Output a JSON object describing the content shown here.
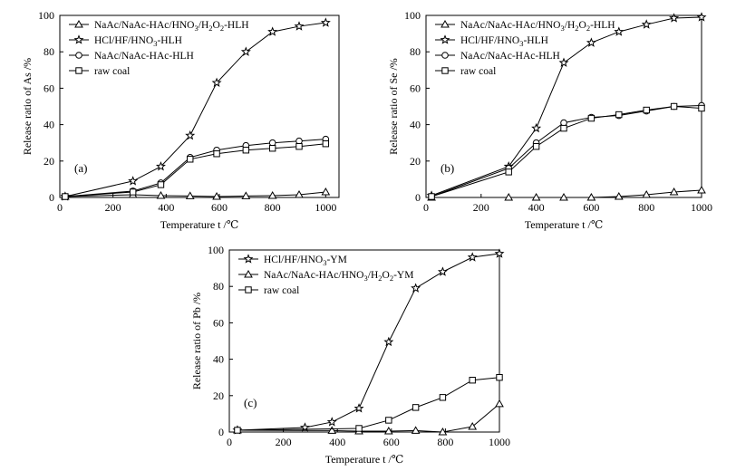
{
  "chart_data": [
    {
      "type": "line",
      "panel_label": "(a)",
      "xlabel": "Temperature    t /℃",
      "ylabel": "Release ratio of As /%",
      "xlim": [
        0,
        1050
      ],
      "ylim": [
        0,
        100
      ],
      "xticks": [
        0,
        200,
        400,
        600,
        800,
        1000
      ],
      "yticks": [
        0,
        20,
        40,
        60,
        80,
        100
      ],
      "legend_position": "top-left",
      "series": [
        {
          "name": "NaAc/NaAc-HAc/HNO3/H2O2-HLH",
          "legend_main": "NaAc/NaAc-HAc/HNO",
          "legend_sub1": "3",
          "legend_mid": "/H",
          "legend_sub2": "2",
          "legend_mid2": "O",
          "legend_sub3": "2",
          "legend_end": "-HLH",
          "marker": "triangle",
          "x": [
            20,
            275,
            380,
            490,
            590,
            700,
            800,
            900,
            1000
          ],
          "y": [
            0.5,
            1.5,
            1.0,
            0.8,
            0.5,
            0.8,
            1.0,
            1.5,
            3.0
          ]
        },
        {
          "name": "HCl/HF/HNO3-HLH",
          "legend_main": "HCl/HF/HNO",
          "legend_sub1": "3",
          "legend_mid": "",
          "legend_sub2": "",
          "legend_mid2": "",
          "legend_sub3": "",
          "legend_end": "-HLH",
          "marker": "star",
          "x": [
            20,
            275,
            380,
            490,
            590,
            700,
            800,
            900,
            1000
          ],
          "y": [
            0.5,
            9,
            17,
            34,
            63,
            80,
            91,
            94,
            96
          ]
        },
        {
          "name": "NaAc/NaAc-HAc-HLH",
          "legend_main": "NaAc/NaAc-HAc-HLH",
          "legend_sub1": "",
          "legend_mid": "",
          "legend_sub2": "",
          "legend_mid2": "",
          "legend_sub3": "",
          "legend_end": "",
          "marker": "circle",
          "x": [
            20,
            275,
            380,
            490,
            590,
            700,
            800,
            900,
            1000
          ],
          "y": [
            0.5,
            3.5,
            8,
            22,
            26,
            28.5,
            30,
            31,
            32
          ]
        },
        {
          "name": "raw coal",
          "legend_main": "raw coal",
          "legend_sub1": "",
          "legend_mid": "",
          "legend_sub2": "",
          "legend_mid2": "",
          "legend_sub3": "",
          "legend_end": "",
          "marker": "square",
          "x": [
            20,
            275,
            380,
            490,
            590,
            700,
            800,
            900,
            1000
          ],
          "y": [
            0.5,
            3,
            7,
            21,
            24,
            26,
            27,
            28,
            29.5
          ]
        }
      ]
    },
    {
      "type": "line",
      "panel_label": "(b)",
      "xlabel": "Temperature    t /℃",
      "ylabel": "Release ratio of Se /%",
      "xlim": [
        0,
        1000
      ],
      "ylim": [
        0,
        100
      ],
      "xticks": [
        0,
        200,
        400,
        600,
        800,
        1000
      ],
      "yticks": [
        0,
        20,
        40,
        60,
        80,
        100
      ],
      "legend_position": "top-left",
      "series": [
        {
          "name": "NaAc/NaAc-HAc/HNO3/H2O2-HLH",
          "legend_main": "NaAc/NaAc-HAc/HNO",
          "legend_sub1": "3",
          "legend_mid": "/H",
          "legend_sub2": "2",
          "legend_mid2": "O",
          "legend_sub3": "2",
          "legend_end": "-HLH",
          "marker": "triangle",
          "x": [
            20,
            300,
            400,
            500,
            600,
            700,
            800,
            900,
            1000
          ],
          "y": [
            0,
            0,
            0,
            0,
            0,
            0.5,
            1.5,
            3,
            4
          ]
        },
        {
          "name": "HCl/HF/HNO3-HLH",
          "legend_main": "HCl/HF/HNO",
          "legend_sub1": "3",
          "legend_mid": "",
          "legend_sub2": "",
          "legend_mid2": "",
          "legend_sub3": "",
          "legend_end": "-HLH",
          "marker": "star",
          "x": [
            20,
            300,
            400,
            500,
            600,
            700,
            800,
            900,
            1000
          ],
          "y": [
            1,
            17,
            38,
            74,
            85,
            91,
            95,
            98.5,
            99
          ]
        },
        {
          "name": "NaAc/NaAc-HAc-HLH",
          "legend_main": "NaAc/NaAc-HAc-HLH",
          "legend_sub1": "",
          "legend_mid": "",
          "legend_sub2": "",
          "legend_mid2": "",
          "legend_sub3": "",
          "legend_end": "",
          "marker": "circle",
          "x": [
            20,
            300,
            400,
            500,
            600,
            700,
            800,
            900,
            1000
          ],
          "y": [
            0.5,
            16,
            30,
            41,
            44,
            45,
            47.5,
            50,
            50.5
          ]
        },
        {
          "name": "raw coal",
          "legend_main": "raw coal",
          "legend_sub1": "",
          "legend_mid": "",
          "legend_sub2": "",
          "legend_mid2": "",
          "legend_sub3": "",
          "legend_end": "",
          "marker": "square",
          "x": [
            20,
            300,
            400,
            500,
            600,
            700,
            800,
            900,
            1000
          ],
          "y": [
            0.5,
            14,
            28,
            38,
            43.5,
            45.5,
            48,
            50,
            49
          ]
        }
      ]
    },
    {
      "type": "line",
      "panel_label": "(c)",
      "xlabel": "Temperature    t /℃",
      "ylabel": "Release ratio of  Pb  /%",
      "xlim": [
        0,
        1000
      ],
      "ylim": [
        0,
        100
      ],
      "xticks": [
        0,
        200,
        400,
        600,
        800,
        1000
      ],
      "yticks": [
        0,
        20,
        40,
        60,
        80,
        100
      ],
      "legend_position": "top-left",
      "series": [
        {
          "name": "HCl/HF/HNO3-YM",
          "legend_main": "HCl/HF/HNO",
          "legend_sub1": "3",
          "legend_mid": "",
          "legend_sub2": "",
          "legend_mid2": "",
          "legend_sub3": "",
          "legend_end": "-YM",
          "marker": "star",
          "x": [
            30,
            280,
            380,
            480,
            590,
            690,
            790,
            900,
            1000
          ],
          "y": [
            1,
            2.5,
            5.5,
            13,
            49.5,
            79,
            88,
            96,
            98
          ]
        },
        {
          "name": "NaAc/NaAc-HAc/HNO3/H2O2-YM",
          "legend_main": "NaAc/NaAc-HAc/HNO",
          "legend_sub1": "3",
          "legend_mid": "/H",
          "legend_sub2": "2",
          "legend_mid2": "O",
          "legend_sub3": "2",
          "legend_end": "-YM",
          "marker": "triangle",
          "x": [
            30,
            380,
            480,
            590,
            690,
            790,
            900,
            1000
          ],
          "y": [
            1,
            0.8,
            0.5,
            0.5,
            0.8,
            0,
            3,
            15.5
          ]
        },
        {
          "name": "raw coal",
          "legend_main": "raw coal",
          "legend_sub1": "",
          "legend_mid": "",
          "legend_sub2": "",
          "legend_mid2": "",
          "legend_sub3": "",
          "legend_end": "",
          "marker": "square",
          "x": [
            30,
            480,
            590,
            690,
            790,
            900,
            1000
          ],
          "y": [
            1,
            2,
            6.5,
            13.5,
            19,
            28.5,
            30
          ]
        }
      ]
    }
  ]
}
